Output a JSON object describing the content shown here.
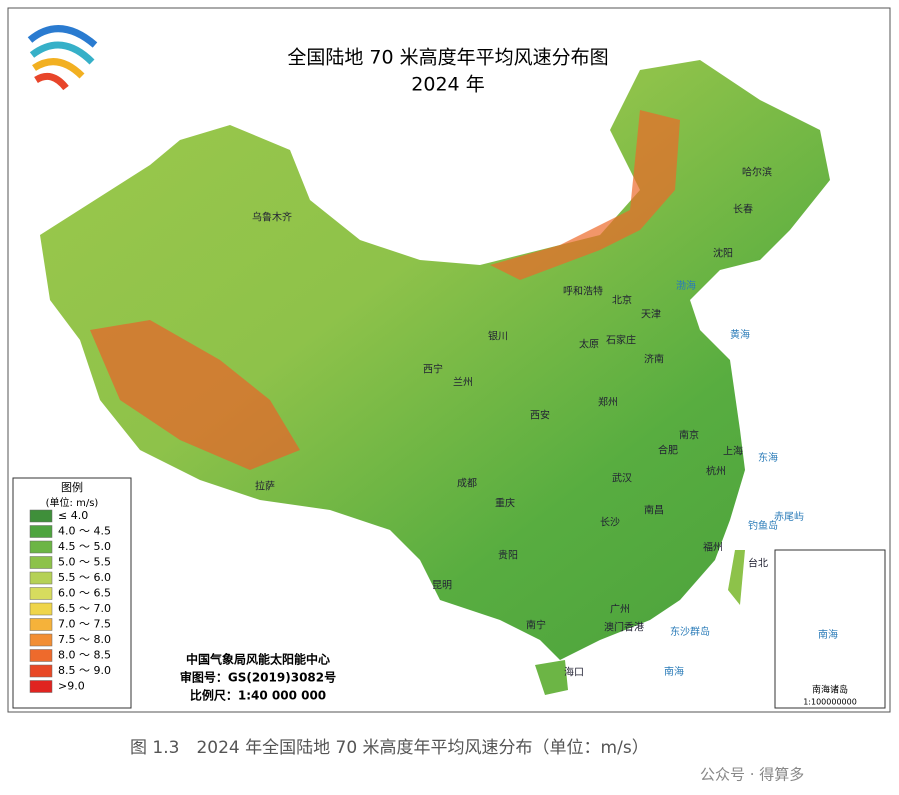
{
  "header": {
    "title": "全国陆地 70 米高度年平均风速分布图",
    "subtitle": "2024 年"
  },
  "legend": {
    "title": "图例",
    "unit": "(单位: m/s)",
    "items": [
      {
        "label": "≤ 4.0",
        "color": "#3f8f3a"
      },
      {
        "label": "4.0 ～ 4.5",
        "color": "#4ea43f"
      },
      {
        "label": "4.5 ～ 5.0",
        "color": "#6cb545"
      },
      {
        "label": "5.0 ～ 5.5",
        "color": "#8dc24a"
      },
      {
        "label": "5.5 ～ 6.0",
        "color": "#b5d156"
      },
      {
        "label": "6.0 ～ 6.5",
        "color": "#d7dc5e"
      },
      {
        "label": "6.5 ～ 7.0",
        "color": "#efd54a"
      },
      {
        "label": "7.0 ～ 7.5",
        "color": "#f5b23a"
      },
      {
        "label": "7.5 ～ 8.0",
        "color": "#f28e34"
      },
      {
        "label": "8.0 ～ 8.5",
        "color": "#ee6a2c"
      },
      {
        "label": "8.5 ～ 9.0",
        "color": "#e84826"
      },
      {
        "label": ">9.0",
        "color": "#e02420"
      }
    ]
  },
  "credits": [
    "中国气象局风能太阳能中心",
    "审图号：GS(2019)3082号",
    "比例尺：1:40 000 000"
  ],
  "cities": [
    "乌鲁木齐",
    "哈尔滨",
    "长春",
    "沈阳",
    "呼和浩特",
    "北京",
    "天津",
    "石家庄",
    "太原",
    "银川",
    "济南",
    "西宁",
    "兰州",
    "郑州",
    "西安",
    "南京",
    "合肥",
    "上海",
    "杭州",
    "拉萨",
    "成都",
    "武汉",
    "重庆",
    "南昌",
    "长沙",
    "福州",
    "台北",
    "贵阳",
    "昆明",
    "南宁",
    "广州",
    "澳门香港",
    "海口"
  ],
  "seas": [
    "渤海",
    "黄海",
    "东海",
    "南海",
    "钓鱼岛",
    "赤尾屿",
    "东沙群岛"
  ],
  "inset": {
    "sea": "南海",
    "title": "南海诸岛",
    "scale": "1:100000000"
  },
  "caption": "图 1.3　2024 年全国陆地 70 米高度年平均风速分布（单位：m/s）",
  "watermark": "公众号 · 得算多"
}
